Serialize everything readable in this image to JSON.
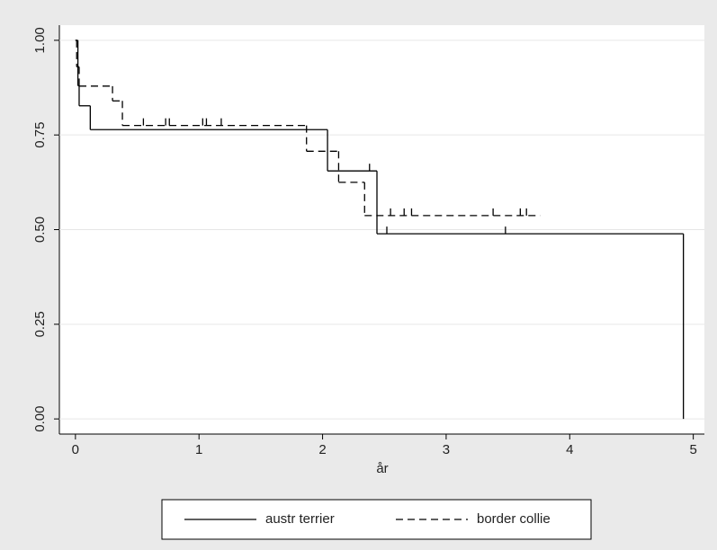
{
  "chart_data": {
    "type": "step",
    "x_label": "år",
    "xlim": [
      -0.13,
      5.09
    ],
    "ylim": [
      -0.04,
      1.04
    ],
    "xticks": [
      0,
      1,
      2,
      3,
      4,
      5
    ],
    "yticks": [
      {
        "value": 0,
        "label": "0.00"
      },
      {
        "value": 0.25,
        "label": "0.25"
      },
      {
        "value": 0.5,
        "label": "0.50"
      },
      {
        "value": 0.75,
        "label": "0.75"
      },
      {
        "value": 1,
        "label": "1.00"
      }
    ],
    "grid": true,
    "series": [
      {
        "name": "austr terrier",
        "color": "#000000",
        "dash": "solid",
        "x": [
          0,
          0.02,
          0.03,
          0.12,
          2.04,
          2.44,
          4.92
        ],
        "values": [
          1,
          0.88,
          0.827,
          0.764,
          0.655,
          0.489,
          0
        ],
        "censored_x": [
          2.38,
          2.52,
          3.48
        ],
        "censored_y": [
          0.655,
          0.489,
          0.489
        ]
      },
      {
        "name": "border collie",
        "color": "#000000",
        "dash": "dashed",
        "x": [
          0,
          0.01,
          0.03,
          0.3,
          0.38,
          1.87,
          2.13,
          2.34,
          3.76
        ],
        "values": [
          1,
          0.93,
          0.879,
          0.84,
          0.775,
          0.707,
          0.625,
          0.537,
          0.537
        ],
        "censored_x": [
          0.55,
          0.73,
          0.76,
          1.03,
          1.06,
          1.18,
          2.55,
          2.66,
          2.72,
          3.38,
          3.6,
          3.65
        ],
        "censored_y": [
          0.775,
          0.775,
          0.775,
          0.775,
          0.775,
          0.775,
          0.537,
          0.537,
          0.537,
          0.537,
          0.537,
          0.537
        ]
      }
    ]
  }
}
